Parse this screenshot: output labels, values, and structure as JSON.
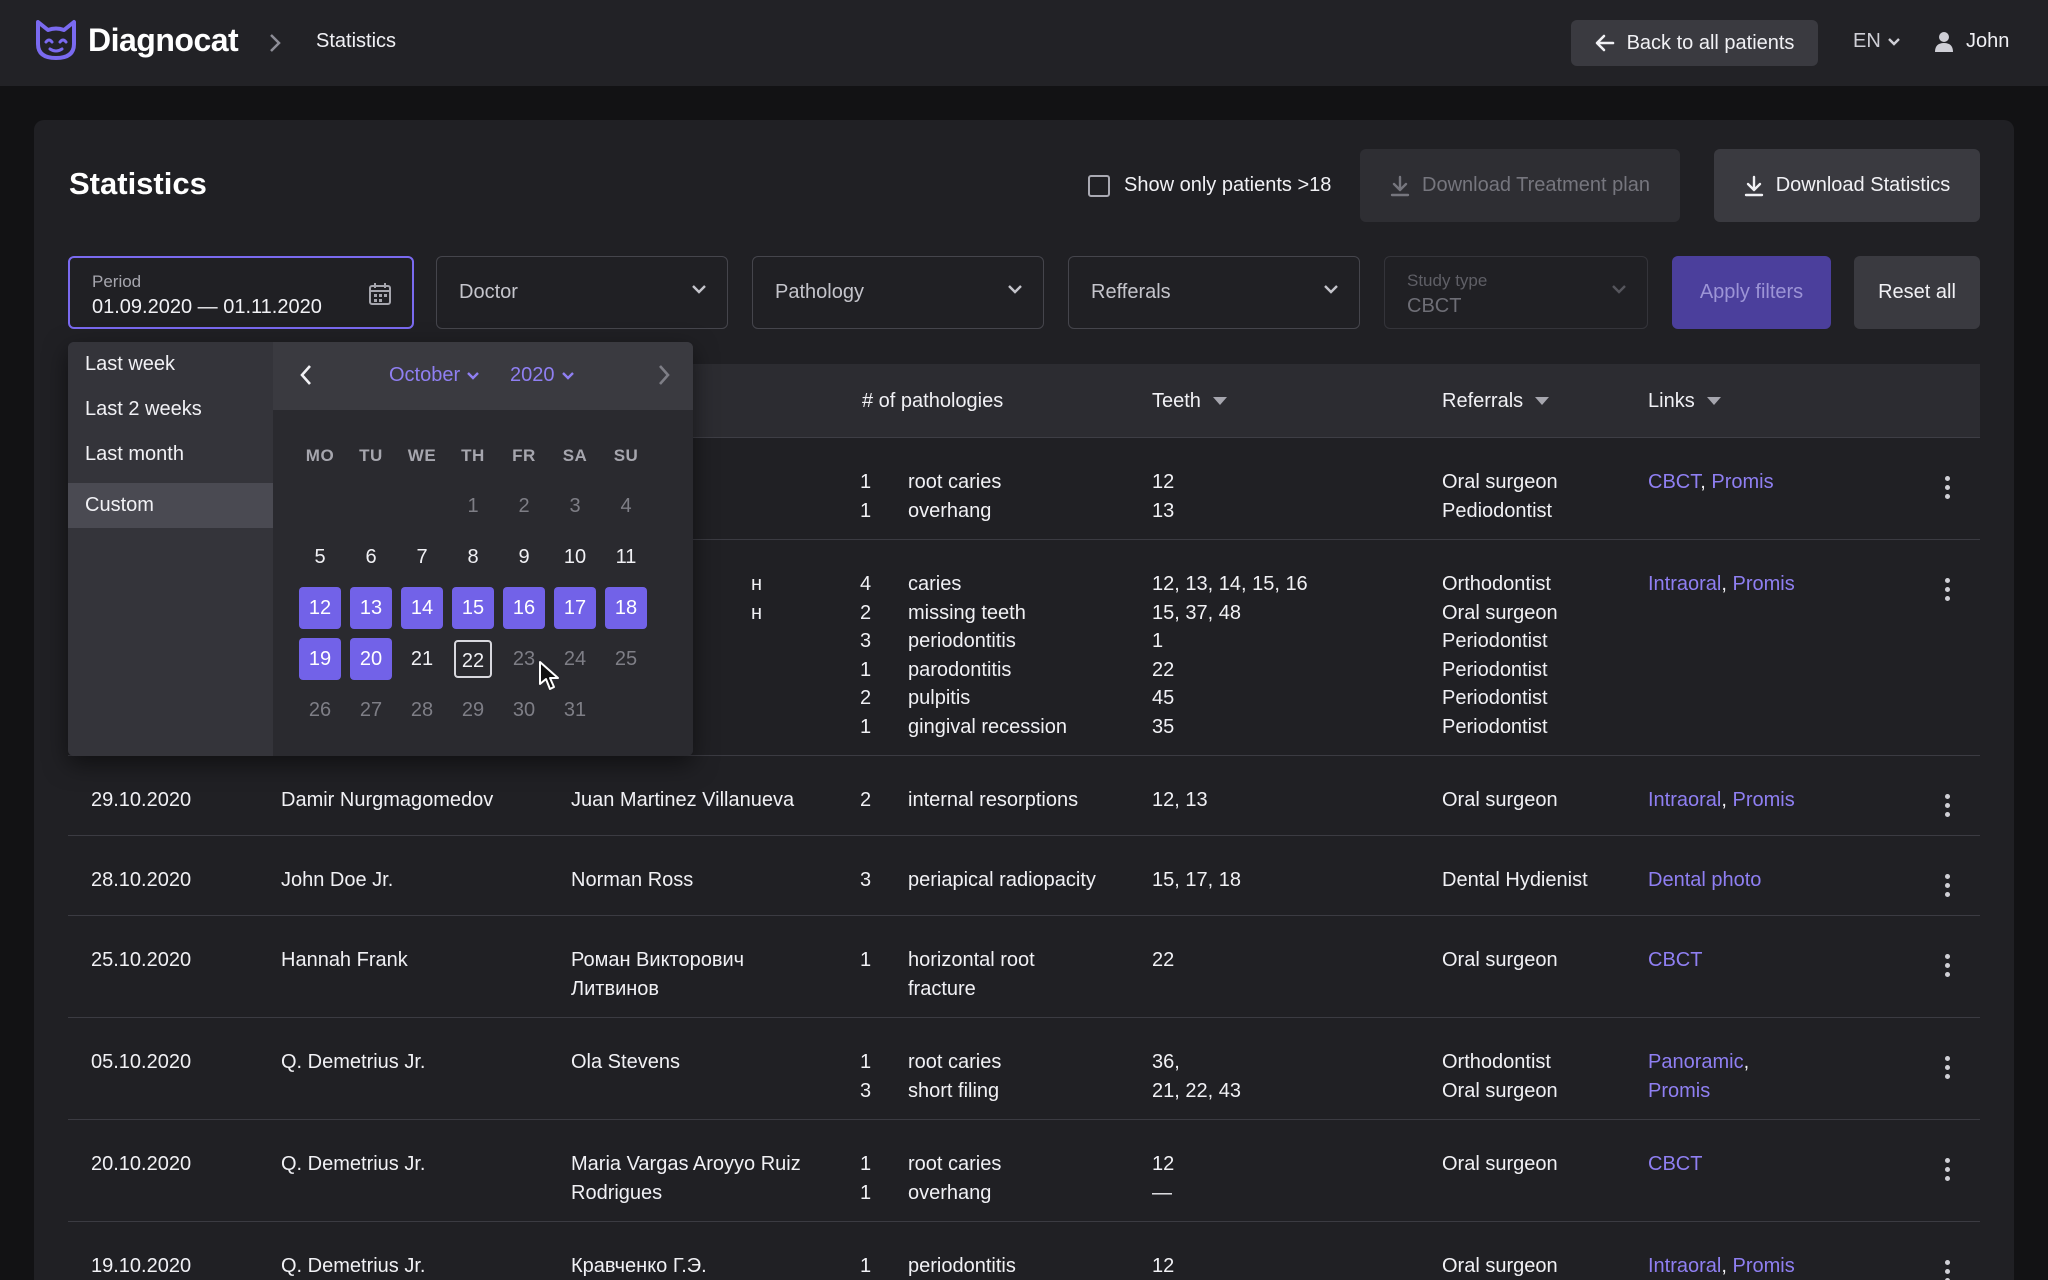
{
  "header": {
    "brand": "Diagnocat",
    "breadcrumb": "Statistics",
    "back_label": "Back to all patients",
    "lang": "EN",
    "user": "John"
  },
  "page": {
    "title": "Statistics",
    "checkbox_label": "Show only patients >18",
    "download_plan": "Download Treatment plan",
    "download_stats": "Download Statistics"
  },
  "filters": {
    "period_label": "Period",
    "period_value": "01.09.2020 — 01.11.2020",
    "doctor": "Doctor",
    "pathology": "Pathology",
    "referrals": "Refferals",
    "study_type_label": "Study type",
    "study_type_value": "CBCT",
    "apply": "Apply filters",
    "reset": "Reset all"
  },
  "table": {
    "headers": {
      "pathologies": "# of pathologies",
      "teeth": "Teeth",
      "referrals": "Referrals",
      "links": "Links"
    },
    "rows": [
      {
        "date": "",
        "doctor": "",
        "patient": [],
        "items": [
          {
            "n": "1",
            "path": "root caries",
            "teeth": "12",
            "ref": "Oral surgeon"
          },
          {
            "n": "1",
            "path": "overhang",
            "teeth": "13",
            "ref": "Pediodontist"
          }
        ],
        "links": [
          "CBCT",
          "Promis"
        ]
      },
      {
        "date": "",
        "doctor": "",
        "patient": [
          "н",
          "н"
        ],
        "items": [
          {
            "n": "4",
            "path": "caries",
            "teeth": "12, 13, 14, 15, 16",
            "ref": "Orthodontist"
          },
          {
            "n": "2",
            "path": "missing teeth",
            "teeth": "15, 37, 48",
            "ref": "Oral surgeon"
          },
          {
            "n": "3",
            "path": "periodontitis",
            "teeth": "1",
            "ref": "Periodontist"
          },
          {
            "n": "1",
            "path": "parodontitis",
            "teeth": "22",
            "ref": "Periodontist"
          },
          {
            "n": "2",
            "path": "pulpitis",
            "teeth": "45",
            "ref": "Periodontist"
          },
          {
            "n": "1",
            "path": "gingival recession",
            "teeth": "35",
            "ref": "Periodontist"
          }
        ],
        "links": [
          "Intraoral",
          "Promis"
        ]
      },
      {
        "date": "29.10.2020",
        "doctor": "Damir Nurgmagomedov",
        "patient": [
          "Juan Martinez Villanueva"
        ],
        "items": [
          {
            "n": "2",
            "path": "internal resorptions",
            "teeth": "12, 13",
            "ref": "Oral surgeon"
          }
        ],
        "links": [
          "Intraoral",
          "Promis"
        ]
      },
      {
        "date": "28.10.2020",
        "doctor": "John Doe Jr.",
        "patient": [
          "Norman Ross"
        ],
        "items": [
          {
            "n": "3",
            "path": "periapical radiopacity",
            "teeth": "15, 17, 18",
            "ref": "Dental Hydienist"
          }
        ],
        "links": [
          "Dental photo"
        ]
      },
      {
        "date": "25.10.2020",
        "doctor": "Hannah Frank",
        "patient": [
          "Роман Викторович",
          "Литвинов"
        ],
        "items": [
          {
            "n": "1",
            "path": "horizontal root",
            "teeth": "22",
            "ref": "Oral surgeon"
          },
          {
            "n": "",
            "path": "fracture",
            "teeth": "",
            "ref": ""
          }
        ],
        "links": [
          "CBCT"
        ]
      },
      {
        "date": "05.10.2020",
        "doctor": "Q. Demetrius Jr.",
        "patient": [
          "Ola Stevens"
        ],
        "items": [
          {
            "n": "1",
            "path": "root caries",
            "teeth": "36,",
            "ref": "Orthodontist"
          },
          {
            "n": "3",
            "path": "short filing",
            "teeth": "21, 22, 43",
            "ref": "Oral surgeon"
          }
        ],
        "links": [
          "Panoramic",
          "Promis"
        ]
      },
      {
        "date": "20.10.2020",
        "doctor": "Q. Demetrius Jr.",
        "patient": [
          "Maria Vargas Aroyyo Ruiz",
          "Rodrigues"
        ],
        "items": [
          {
            "n": "1",
            "path": "root caries",
            "teeth": "12",
            "ref": "Oral surgeon"
          },
          {
            "n": "1",
            "path": "overhang",
            "teeth": "—",
            "ref": ""
          }
        ],
        "links": [
          "CBCT"
        ]
      },
      {
        "date": "19.10.2020",
        "doctor": "Q. Demetrius Jr.",
        "patient": [
          "Кравченко Г.Э."
        ],
        "items": [
          {
            "n": "1",
            "path": "periodontitis",
            "teeth": "12",
            "ref": "Oral surgeon"
          }
        ],
        "links": [
          "Intraoral",
          "Promis"
        ]
      }
    ]
  },
  "picker": {
    "presets": [
      "Last week",
      "Last 2 weeks",
      "Last month",
      "Custom"
    ],
    "active_preset": "Custom",
    "month": "October",
    "year": "2020",
    "weekdays": [
      "MO",
      "TU",
      "WE",
      "TH",
      "FR",
      "SA",
      "SU"
    ],
    "leading_muted": [
      "1",
      "2",
      "3",
      "4"
    ],
    "days": [
      "5",
      "6",
      "7",
      "8",
      "9",
      "10",
      "11",
      "12",
      "13",
      "14",
      "15",
      "16",
      "17",
      "18",
      "19",
      "20",
      "21",
      "22",
      "23",
      "24",
      "25",
      "26",
      "27",
      "28",
      "29",
      "30",
      "31"
    ],
    "selected_days": [
      "12",
      "13",
      "14",
      "15",
      "16",
      "17",
      "18",
      "19",
      "20"
    ],
    "today": "22",
    "muted_after": "22"
  },
  "colors": {
    "accent": "#7262e8",
    "link": "#8f7ff2",
    "background": "#121214",
    "card": "#202024"
  }
}
